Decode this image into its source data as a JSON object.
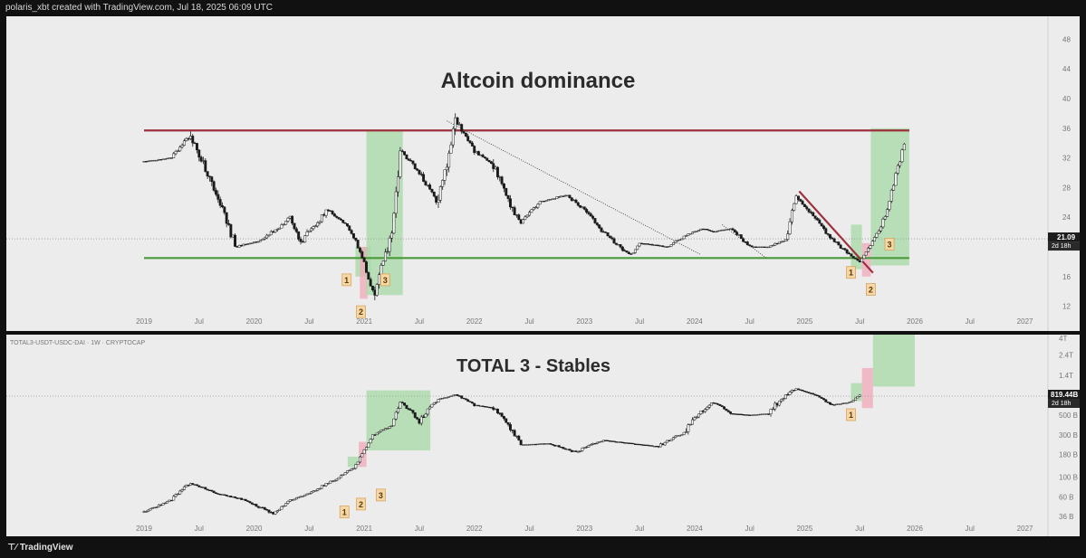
{
  "header": {
    "credit": "polaris_xbt created with TradingView.com, Jul 18, 2025 06:09 UTC"
  },
  "footer": {
    "brand": "TradingView"
  },
  "chart_data": [
    {
      "type": "line",
      "title": "Altcoin dominance",
      "x_ticks": [
        "2019",
        "Jul",
        "2020",
        "Jul",
        "2021",
        "Jul",
        "2022",
        "Jul",
        "2023",
        "Jul",
        "2024",
        "Jul",
        "2025",
        "Jul",
        "2026",
        "Jul",
        "2027"
      ],
      "y_ticks": [
        "48",
        "44",
        "40",
        "36",
        "32",
        "28",
        "24",
        "20",
        "16",
        "12"
      ],
      "ylim": [
        10,
        50
      ],
      "last_value": {
        "value": "21.09",
        "sub": "2d 18h"
      },
      "resistance": 35.7,
      "support": 18.5,
      "x": [
        "2019-01",
        "2019-04",
        "2019-06",
        "2019-09",
        "2019-11",
        "2020-02",
        "2020-05",
        "2020-06",
        "2020-09",
        "2020-11",
        "2020-12",
        "2021-01",
        "2021-02",
        "2021-04",
        "2021-05",
        "2021-07",
        "2021-09",
        "2021-11",
        "2022-01",
        "2022-03",
        "2022-06",
        "2022-08",
        "2022-11",
        "2023-01",
        "2023-03",
        "2023-06",
        "2023-07",
        "2023-10",
        "2023-12",
        "2024-02",
        "2024-03",
        "2024-05",
        "2024-07",
        "2024-09",
        "2024-11",
        "2024-12",
        "2025-02",
        "2025-04",
        "2025-06",
        "2025-07",
        "2025-08",
        "2025-09",
        "2025-10",
        "2025-11",
        "2025-12"
      ],
      "series": [
        {
          "values": [
            31.5,
            32,
            35,
            27,
            20,
            21,
            24,
            20.5,
            25,
            23,
            21,
            17.8,
            13.5,
            22,
            33,
            30,
            26,
            37,
            33,
            31,
            23,
            26,
            27,
            25,
            22,
            18.8,
            20.5,
            20,
            21.5,
            22.5,
            22,
            22.5,
            20,
            20,
            21,
            27,
            24,
            21,
            18.8,
            18,
            20,
            22,
            25,
            30,
            34.5
          ]
        }
      ],
      "annotations": {
        "cycles": [
          {
            "badges": [
              "1",
              "2",
              "3"
            ]
          },
          {
            "badges": [
              "1",
              "2",
              "3"
            ]
          }
        ]
      }
    },
    {
      "type": "line",
      "title": "TOTAL 3 - Stables",
      "symbol": "TOTAL3-USDT-USDC-DAI · 1W · CRYPTOCAP",
      "scale": "log",
      "x_ticks": [
        "2019",
        "Jul",
        "2020",
        "Jul",
        "2021",
        "Jul",
        "2022",
        "Jul",
        "2023",
        "Jul",
        "2024",
        "Jul",
        "2025",
        "Jul",
        "2026",
        "Jul",
        "2027"
      ],
      "y_ticks": [
        "4T",
        "2.4T",
        "1.4T",
        "500 B",
        "300 B",
        "180 B",
        "100 B",
        "60 B",
        "36 B"
      ],
      "last_value": {
        "value": "819.44B",
        "sub": "2d 18h"
      },
      "x": [
        "2019-01",
        "2019-04",
        "2019-06",
        "2019-09",
        "2019-12",
        "2020-03",
        "2020-05",
        "2020-07",
        "2020-10",
        "2020-12",
        "2021-01",
        "2021-02",
        "2021-04",
        "2021-05",
        "2021-07",
        "2021-09",
        "2021-11",
        "2022-01",
        "2022-03",
        "2022-06",
        "2022-09",
        "2022-12",
        "2023-03",
        "2023-06",
        "2023-09",
        "2023-12",
        "2024-03",
        "2024-05",
        "2024-07",
        "2024-09",
        "2024-12",
        "2025-02",
        "2025-04",
        "2025-06",
        "2025-07"
      ],
      "series": [
        {
          "values": [
            40,
            55,
            85,
            65,
            55,
            38,
            55,
            65,
            95,
            130,
            200,
            300,
            380,
            700,
            420,
            750,
            850,
            650,
            600,
            230,
            240,
            190,
            260,
            240,
            220,
            320,
            700,
            520,
            500,
            520,
            1000,
            850,
            650,
            700,
            850
          ]
        }
      ],
      "annotations": {
        "cycles": [
          {
            "badges": [
              "1",
              "2",
              "3"
            ]
          },
          {
            "badges": [
              "1"
            ]
          }
        ]
      }
    }
  ]
}
